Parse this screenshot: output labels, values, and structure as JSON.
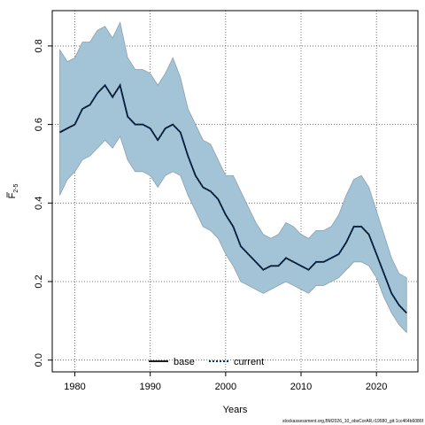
{
  "chart_data": {
    "type": "line",
    "title": "",
    "xlabel": "Years",
    "ylabel_main": "F",
    "ylabel_sub": "2-5",
    "xlim": [
      1977,
      2025.5
    ],
    "ylim": [
      -0.03,
      0.89
    ],
    "xticks": [
      1980,
      1990,
      2000,
      2010,
      2020
    ],
    "yticks": [
      0.0,
      0.2,
      0.4,
      0.6,
      0.8
    ],
    "ytick_labels": [
      "0.0",
      "0.2",
      "0.4",
      "0.6",
      "0.8"
    ],
    "grid": true,
    "legend_position": "bottom-center",
    "x": [
      1978,
      1979,
      1980,
      1981,
      1982,
      1983,
      1984,
      1985,
      1986,
      1987,
      1988,
      1989,
      1990,
      1991,
      1992,
      1993,
      1994,
      1995,
      1996,
      1997,
      1998,
      1999,
      2000,
      2001,
      2002,
      2003,
      2004,
      2005,
      2006,
      2007,
      2008,
      2009,
      2010,
      2011,
      2012,
      2013,
      2014,
      2015,
      2016,
      2017,
      2018,
      2019,
      2020,
      2021,
      2022,
      2023,
      2024
    ],
    "series": [
      {
        "name": "base",
        "style": "solid",
        "color": "#000000",
        "values": [
          0.58,
          0.59,
          0.6,
          0.64,
          0.65,
          0.68,
          0.7,
          0.67,
          0.7,
          0.62,
          0.6,
          0.6,
          0.59,
          0.56,
          0.59,
          0.6,
          0.58,
          0.52,
          0.47,
          0.44,
          0.43,
          0.41,
          0.37,
          0.34,
          0.29,
          0.27,
          0.25,
          0.23,
          0.24,
          0.24,
          0.26,
          0.25,
          0.24,
          0.23,
          0.25,
          0.25,
          0.26,
          0.27,
          0.3,
          0.34,
          0.34,
          0.32,
          0.27,
          0.22,
          0.17,
          0.14,
          0.12
        ]
      },
      {
        "name": "current",
        "style": "dotted",
        "color": "#003366",
        "values": [
          0.58,
          0.59,
          0.6,
          0.64,
          0.65,
          0.68,
          0.7,
          0.67,
          0.7,
          0.62,
          0.6,
          0.6,
          0.59,
          0.56,
          0.59,
          0.6,
          0.58,
          0.52,
          0.47,
          0.44,
          0.43,
          0.41,
          0.37,
          0.34,
          0.29,
          0.27,
          0.25,
          0.23,
          0.24,
          0.24,
          0.26,
          0.25,
          0.24,
          0.23,
          0.25,
          0.25,
          0.26,
          0.27,
          0.3,
          0.34,
          0.34,
          0.32,
          0.27,
          0.22,
          0.17,
          0.14,
          0.12
        ]
      }
    ],
    "band": {
      "fill": "#a3c4d6",
      "stroke": "#8aa0ac",
      "upper": [
        0.79,
        0.76,
        0.77,
        0.81,
        0.81,
        0.84,
        0.85,
        0.82,
        0.86,
        0.77,
        0.74,
        0.74,
        0.73,
        0.7,
        0.73,
        0.77,
        0.72,
        0.64,
        0.6,
        0.56,
        0.55,
        0.51,
        0.47,
        0.47,
        0.43,
        0.39,
        0.35,
        0.32,
        0.31,
        0.32,
        0.35,
        0.34,
        0.32,
        0.31,
        0.33,
        0.33,
        0.34,
        0.37,
        0.42,
        0.46,
        0.47,
        0.44,
        0.38,
        0.32,
        0.26,
        0.22,
        0.21
      ],
      "lower": [
        0.42,
        0.46,
        0.48,
        0.51,
        0.52,
        0.54,
        0.56,
        0.54,
        0.57,
        0.51,
        0.48,
        0.48,
        0.47,
        0.44,
        0.47,
        0.48,
        0.47,
        0.42,
        0.38,
        0.34,
        0.33,
        0.31,
        0.27,
        0.24,
        0.2,
        0.19,
        0.18,
        0.17,
        0.18,
        0.19,
        0.2,
        0.19,
        0.18,
        0.17,
        0.19,
        0.19,
        0.2,
        0.21,
        0.23,
        0.25,
        0.25,
        0.24,
        0.21,
        0.16,
        0.12,
        0.09,
        0.07
      ]
    },
    "footnote": "stockassessment.org,BM2026_10_obsCorAR,r19580_git:1cc464b6086f"
  }
}
